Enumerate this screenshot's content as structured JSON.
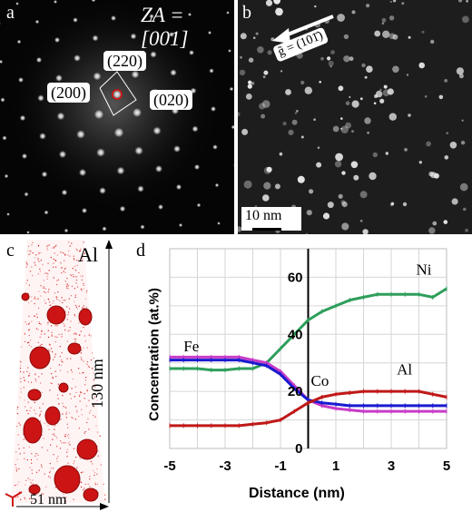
{
  "panel_a": {
    "letter": "a",
    "zone_axis": "ZA = [001]",
    "spots": [
      "(220)",
      "(200)",
      "(020)"
    ]
  },
  "panel_b": {
    "letter": "b",
    "g_vector": "g̃ = (101̄)",
    "scale_bar": "10 nm"
  },
  "panel_c": {
    "letter": "c",
    "element": "Al",
    "height_dim": "130 nm",
    "width_dim": "51 nm"
  },
  "panel_d": {
    "letter": "d"
  },
  "chart_data": {
    "type": "line",
    "xlabel": "Distance (nm)",
    "ylabel": "Concentration (at.%)",
    "xlim": [
      -5,
      5
    ],
    "ylim": [
      0,
      70
    ],
    "xticks": [
      "-5",
      "-3",
      "-1",
      "1",
      "3",
      "5"
    ],
    "yticks": [
      "0",
      "20",
      "40",
      "60"
    ],
    "grid": true,
    "vline_x": 0,
    "x": [
      -5,
      -4.5,
      -4,
      -3.5,
      -3,
      -2.5,
      -2,
      -1.5,
      -1,
      -0.5,
      0,
      0.5,
      1,
      1.5,
      2,
      2.5,
      3,
      3.5,
      4,
      4.5,
      5
    ],
    "series": [
      {
        "name": "Ni",
        "color": "#2e9e5b",
        "values": [
          28,
          28,
          28,
          27.5,
          27.5,
          28,
          28,
          30,
          35,
          40,
          45,
          48,
          50,
          52,
          53,
          54,
          54,
          54,
          54,
          53,
          56
        ]
      },
      {
        "name": "Fe",
        "color": "#c83cc8",
        "values": [
          32,
          32,
          32,
          32,
          32,
          32,
          31,
          30,
          27,
          22,
          17,
          15,
          14,
          13.5,
          13,
          13,
          13,
          13,
          13,
          13,
          13
        ]
      },
      {
        "name": "",
        "color": "#1a1ad0",
        "values": [
          31,
          31,
          31,
          31,
          31,
          31,
          30,
          29,
          26,
          21,
          17,
          16,
          15.5,
          15,
          15,
          15,
          15,
          15,
          15,
          15,
          15
        ]
      },
      {
        "name": "Al",
        "color": "#c01818",
        "values": [
          8,
          8,
          8,
          8,
          8,
          8,
          8.5,
          9,
          10,
          13,
          16,
          18,
          19,
          19.5,
          20,
          20,
          20,
          20,
          20,
          19,
          18
        ]
      }
    ],
    "annotations": [
      {
        "text": "Ni",
        "x": 3.9,
        "y": 61
      },
      {
        "text": "Fe",
        "x": -4.5,
        "y": 34
      },
      {
        "text": "Co",
        "x": 0.1,
        "y": 22
      },
      {
        "text": "Al",
        "x": 3.2,
        "y": 26
      }
    ]
  }
}
